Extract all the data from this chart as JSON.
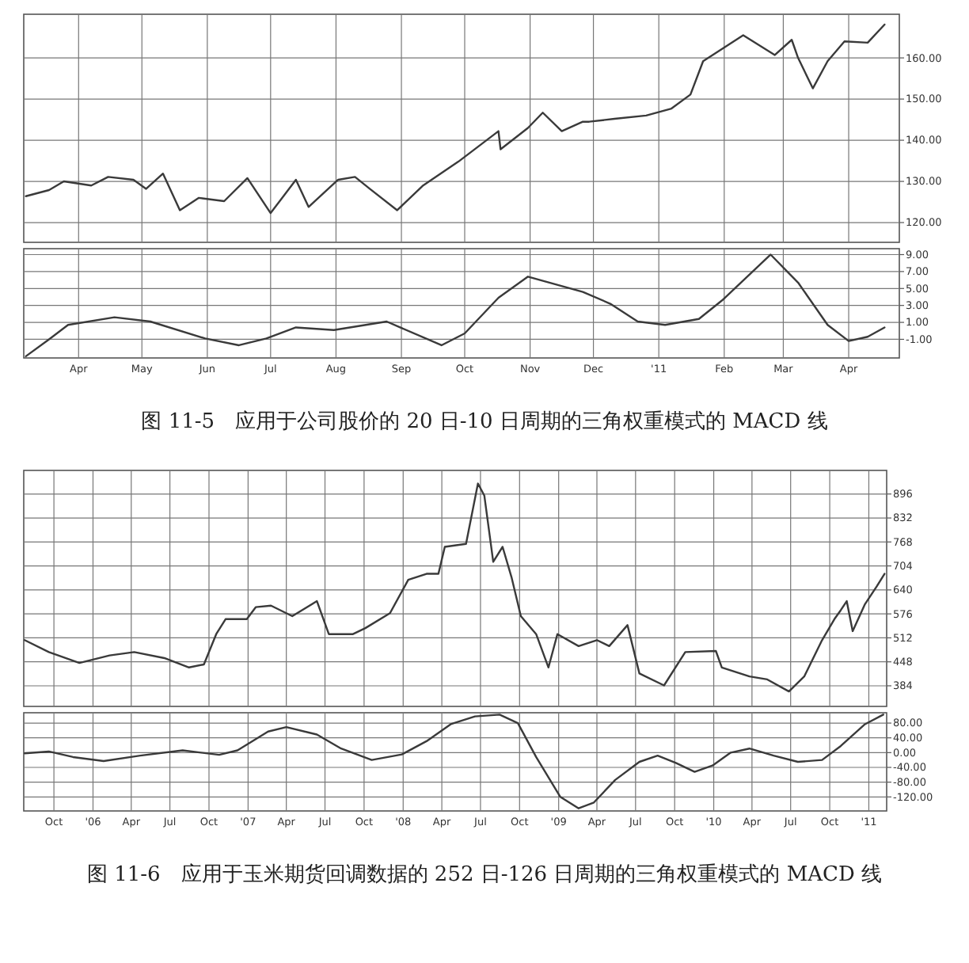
{
  "chart_data": [
    {
      "type": "line",
      "color": "#3a3a3a",
      "grid": true,
      "tick_labels": "y",
      "xlim": [
        "2010-03-06",
        "2011-04-25"
      ],
      "ylim": [
        115.2,
        170.6
      ],
      "yticks": [
        {
          "value": 120,
          "label": "120.00"
        },
        {
          "value": 130,
          "label": "130.00"
        },
        {
          "value": 140,
          "label": "140.00"
        },
        {
          "value": 150,
          "label": "150.00"
        },
        {
          "value": 160,
          "label": "160.00"
        }
      ],
      "xticks": [
        {
          "value": "2010-04-01",
          "label": null
        },
        {
          "value": "2010-05-01",
          "label": null
        },
        {
          "value": "2010-06-01",
          "label": null
        },
        {
          "value": "2010-07-01",
          "label": null
        },
        {
          "value": "2010-08-01",
          "label": null
        },
        {
          "value": "2010-09-01",
          "label": null
        },
        {
          "value": "2010-10-01",
          "label": null
        },
        {
          "value": "2010-11-01",
          "label": null
        },
        {
          "value": "2010-12-01",
          "label": null
        },
        {
          "value": "2011-01-01",
          "label": null
        },
        {
          "value": "2011-02-01",
          "label": null
        },
        {
          "value": "2011-03-01",
          "label": null
        },
        {
          "value": "2011-04-01",
          "label": null
        }
      ],
      "x": [
        "2010-03-07",
        "2010-03-18",
        "2010-03-25",
        "2010-04-07",
        "2010-04-15",
        "2010-04-27",
        "2010-05-03",
        "2010-05-11",
        "2010-05-19",
        "2010-05-28",
        "2010-06-09",
        "2010-06-20",
        "2010-07-01",
        "2010-07-13",
        "2010-07-19",
        "2010-08-02",
        "2010-08-10",
        "2010-08-17",
        "2010-08-30",
        "2010-09-11",
        "2010-09-28",
        "2010-10-17",
        "2010-10-18",
        "2010-10-31",
        "2010-11-07",
        "2010-11-16",
        "2010-11-26",
        "2010-11-29",
        "2010-12-11",
        "2010-12-26",
        "2011-01-07",
        "2011-01-16",
        "2011-01-22",
        "2011-02-10",
        "2011-02-25",
        "2011-03-05",
        "2011-03-08",
        "2011-03-15",
        "2011-03-22",
        "2011-03-30",
        "2011-04-10",
        "2011-04-18"
      ],
      "values": [
        126.4,
        127.9,
        130,
        129,
        131.1,
        130.4,
        128.2,
        131.9,
        123,
        126,
        125.2,
        130.8,
        122.3,
        130.4,
        123.8,
        130.4,
        131.1,
        128.2,
        123,
        128.9,
        134.8,
        142.2,
        137.8,
        143,
        146.7,
        142.2,
        144.5,
        144.5,
        145.2,
        146,
        147.7,
        151.1,
        159.2,
        165.5,
        160.7,
        164.4,
        160,
        152.6,
        159.2,
        164,
        163.7,
        168.1
      ]
    },
    {
      "type": "line",
      "color": "#3a3a3a",
      "grid": true,
      "xlim": [
        "2010-03-06",
        "2011-04-25"
      ],
      "ylim": [
        -3.2,
        9.7
      ],
      "yticks": [
        {
          "value": -1,
          "label": "-1.00"
        },
        {
          "value": 1,
          "label": "1.00"
        },
        {
          "value": 3,
          "label": "3.00"
        },
        {
          "value": 5,
          "label": "5.00"
        },
        {
          "value": 7,
          "label": "7.00"
        },
        {
          "value": 9,
          "label": "9.00"
        }
      ],
      "xticks": [
        {
          "value": "2010-04-01",
          "label": "Apr"
        },
        {
          "value": "2010-05-01",
          "label": "May"
        },
        {
          "value": "2010-06-01",
          "label": "Jun"
        },
        {
          "value": "2010-07-01",
          "label": "Jul"
        },
        {
          "value": "2010-08-01",
          "label": "Aug"
        },
        {
          "value": "2010-09-01",
          "label": "Sep"
        },
        {
          "value": "2010-10-01",
          "label": "Oct"
        },
        {
          "value": "2010-11-01",
          "label": "Nov"
        },
        {
          "value": "2010-12-01",
          "label": "Dec"
        },
        {
          "value": "2011-01-01",
          "label": "'11"
        },
        {
          "value": "2011-02-01",
          "label": "Feb"
        },
        {
          "value": "2011-03-01",
          "label": "Mar"
        },
        {
          "value": "2011-04-01",
          "label": "Apr"
        }
      ],
      "x": [
        "2010-03-07",
        "2010-03-18",
        "2010-03-27",
        "2010-04-18",
        "2010-05-05",
        "2010-05-31",
        "2010-06-16",
        "2010-06-29",
        "2010-07-13",
        "2010-07-31",
        "2010-08-25",
        "2010-09-20",
        "2010-10-01",
        "2010-10-17",
        "2010-10-31",
        "2010-11-26",
        "2010-12-09",
        "2010-12-22",
        "2011-01-04",
        "2011-01-20",
        "2011-01-31",
        "2011-02-23",
        "2011-03-08",
        "2011-03-22",
        "2011-04-01",
        "2011-04-10",
        "2011-04-18"
      ],
      "values": [
        -3.0,
        -1.0,
        0.7,
        1.6,
        1.1,
        -0.9,
        -1.7,
        -0.9,
        0.4,
        0.1,
        1.1,
        -1.7,
        -0.3,
        3.9,
        6.4,
        4.6,
        3.2,
        1.1,
        0.7,
        1.4,
        3.6,
        9.0,
        5.7,
        0.7,
        -1.2,
        -0.7,
        0.4
      ],
      "annotations": [
        "图 11-5　应用于公司股价的 20 日-10 日周期的三角权重模式的 MACD 线"
      ]
    },
    {
      "type": "line",
      "color": "#3a3a3a",
      "grid": true,
      "tick_labels": "y",
      "xlim": [
        "2005-07-22",
        "2011-02-12"
      ],
      "ylim": [
        329,
        959
      ],
      "yticks": [
        384,
        448,
        512,
        576,
        640,
        704,
        768,
        832,
        896
      ],
      "xticks": [
        {
          "value": "2005-10-01",
          "label": null
        },
        {
          "value": "2006-01-01",
          "label": null
        },
        {
          "value": "2006-04-01",
          "label": null
        },
        {
          "value": "2006-07-01",
          "label": null
        },
        {
          "value": "2006-10-01",
          "label": null
        },
        {
          "value": "2007-01-01",
          "label": null
        },
        {
          "value": "2007-04-01",
          "label": null
        },
        {
          "value": "2007-07-01",
          "label": null
        },
        {
          "value": "2007-10-01",
          "label": null
        },
        {
          "value": "2008-01-01",
          "label": null
        },
        {
          "value": "2008-04-01",
          "label": null
        },
        {
          "value": "2008-07-01",
          "label": null
        },
        {
          "value": "2008-10-01",
          "label": null
        },
        {
          "value": "2009-01-01",
          "label": null
        },
        {
          "value": "2009-04-01",
          "label": null
        },
        {
          "value": "2009-07-01",
          "label": null
        },
        {
          "value": "2009-10-01",
          "label": null
        },
        {
          "value": "2010-01-01",
          "label": null
        },
        {
          "value": "2010-04-01",
          "label": null
        },
        {
          "value": "2010-07-01",
          "label": null
        },
        {
          "value": "2010-10-01",
          "label": null
        },
        {
          "value": "2011-01-01",
          "label": null
        }
      ],
      "x": [
        "2005-07-24",
        "2005-09-19",
        "2005-11-30",
        "2006-02-09",
        "2006-04-08",
        "2006-06-18",
        "2006-08-15",
        "2006-09-19",
        "2006-10-18",
        "2006-11-09",
        "2006-12-29",
        "2007-01-19",
        "2007-02-24",
        "2007-04-15",
        "2007-06-12",
        "2007-07-10",
        "2007-09-05",
        "2007-10-04",
        "2007-12-01",
        "2008-01-13",
        "2008-02-25",
        "2008-03-24",
        "2008-04-08",
        "2008-05-28",
        "2008-06-25",
        "2008-07-10",
        "2008-07-31",
        "2008-08-22",
        "2008-09-12",
        "2008-10-04",
        "2008-11-09",
        "2008-12-08",
        "2008-12-29",
        "2009-02-17",
        "2009-04-01",
        "2009-04-30",
        "2009-06-12",
        "2009-07-10",
        "2009-09-06",
        "2009-10-26",
        "2010-01-06",
        "2010-01-20",
        "2010-03-26",
        "2010-05-07",
        "2010-06-27",
        "2010-08-02",
        "2010-09-13",
        "2010-10-12",
        "2010-10-27",
        "2010-11-10",
        "2010-11-24",
        "2010-12-23",
        "2011-01-20",
        "2011-02-07"
      ],
      "values": [
        506,
        474,
        445,
        465,
        474,
        458,
        433,
        441,
        522,
        562,
        562,
        594,
        598,
        570,
        610,
        522,
        522,
        538,
        578,
        667,
        683,
        683,
        755,
        763,
        924,
        892,
        715,
        755,
        674,
        570,
        522,
        433,
        522,
        490,
        506,
        490,
        546,
        417,
        385,
        474,
        477,
        433,
        409,
        401,
        369,
        409,
        506,
        562,
        586,
        610,
        530,
        602,
        650,
        683
      ]
    },
    {
      "type": "line",
      "color": "#3a3a3a",
      "grid": true,
      "xlim": [
        "2005-07-22",
        "2011-02-12"
      ],
      "ylim": [
        -158,
        108
      ],
      "yticks": [
        {
          "value": -120,
          "label": "-120.00"
        },
        {
          "value": -80,
          "label": "-80.00"
        },
        {
          "value": -40,
          "label": "-40.00"
        },
        {
          "value": 0,
          "label": "0.00"
        },
        {
          "value": 40,
          "label": "40.00"
        },
        {
          "value": 80,
          "label": "80.00"
        }
      ],
      "xticks": [
        {
          "value": "2005-10-01",
          "label": "Oct"
        },
        {
          "value": "2006-01-01",
          "label": "'06"
        },
        {
          "value": "2006-04-01",
          "label": "Apr"
        },
        {
          "value": "2006-07-01",
          "label": "Jul"
        },
        {
          "value": "2006-10-01",
          "label": "Oct"
        },
        {
          "value": "2007-01-01",
          "label": "'07"
        },
        {
          "value": "2007-04-01",
          "label": "Apr"
        },
        {
          "value": "2007-07-01",
          "label": "Jul"
        },
        {
          "value": "2007-10-01",
          "label": "Oct"
        },
        {
          "value": "2008-01-01",
          "label": "'08"
        },
        {
          "value": "2008-04-01",
          "label": "Apr"
        },
        {
          "value": "2008-07-01",
          "label": "Jul"
        },
        {
          "value": "2008-10-01",
          "label": "Oct"
        },
        {
          "value": "2009-01-01",
          "label": "'09"
        },
        {
          "value": "2009-04-01",
          "label": "Apr"
        },
        {
          "value": "2009-07-01",
          "label": "Jul"
        },
        {
          "value": "2009-10-01",
          "label": "Oct"
        },
        {
          "value": "2010-01-01",
          "label": "'10"
        },
        {
          "value": "2010-04-01",
          "label": "Apr"
        },
        {
          "value": "2010-07-01",
          "label": "Jul"
        },
        {
          "value": "2010-10-01",
          "label": "Oct"
        },
        {
          "value": "2011-01-01",
          "label": "'11"
        }
      ],
      "x": [
        "2005-07-24",
        "2005-09-19",
        "2005-11-15",
        "2006-01-26",
        "2006-04-22",
        "2006-07-31",
        "2006-10-25",
        "2006-12-07",
        "2007-02-17",
        "2007-04-01",
        "2007-06-12",
        "2007-08-08",
        "2007-10-19",
        "2007-12-29",
        "2008-02-25",
        "2008-04-22",
        "2008-06-18",
        "2008-08-15",
        "2008-09-27",
        "2008-11-09",
        "2009-01-05",
        "2009-02-17",
        "2009-03-25",
        "2009-05-14",
        "2009-07-10",
        "2009-08-22",
        "2009-10-04",
        "2009-11-17",
        "2009-12-29",
        "2010-02-10",
        "2010-03-26",
        "2010-05-22",
        "2010-07-18",
        "2010-09-13",
        "2010-10-27",
        "2010-12-23",
        "2011-02-04"
      ],
      "values": [
        -2,
        3,
        -12,
        -23,
        -8,
        6,
        -6,
        6,
        57,
        69,
        49,
        11,
        -20,
        -5,
        31,
        77,
        98,
        103,
        80,
        -12,
        -120,
        -151,
        -135,
        -74,
        -25,
        -8,
        -28,
        -52,
        -35,
        0,
        11,
        -8,
        -25,
        -20,
        18,
        77,
        103
      ],
      "annotations": [
        "图 11-6　应用于玉米期货回调数据的 252 日-126 日周期的三角权重模式的 MACD 线"
      ]
    }
  ]
}
